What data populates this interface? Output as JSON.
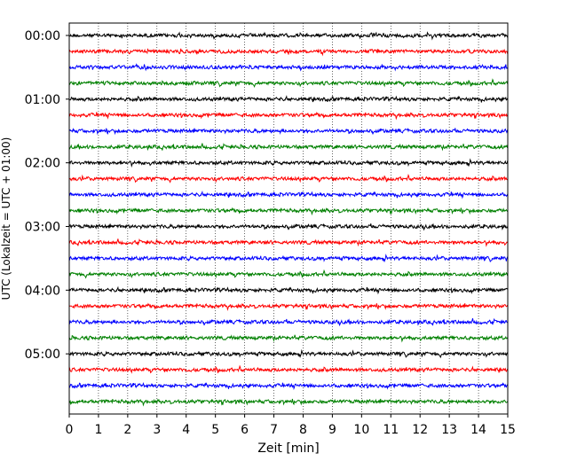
{
  "chart_data": {
    "type": "line",
    "subtype": "seismogram-helicorder",
    "xlabel": "Zeit  [min]",
    "ylabel": "UTC (Lokalzeit = UTC + 01:00)",
    "xlim": [
      0,
      15
    ],
    "x_ticks": [
      0,
      1,
      2,
      3,
      4,
      5,
      6,
      7,
      8,
      9,
      10,
      11,
      12,
      13,
      14,
      15
    ],
    "x_tick_labels": [
      "0",
      "1",
      "2",
      "3",
      "4",
      "5",
      "6",
      "7",
      "8",
      "9",
      "10",
      "11",
      "12",
      "13",
      "14",
      "15"
    ],
    "grid": "vertical-dotted",
    "row_interval_minutes": 15,
    "trace_colors": [
      "#000000",
      "#ff0000",
      "#0000ff",
      "#008000"
    ],
    "traces": [
      {
        "start": "00:00",
        "color": "#000000"
      },
      {
        "start": "00:15",
        "color": "#ff0000"
      },
      {
        "start": "00:30",
        "color": "#0000ff"
      },
      {
        "start": "00:45",
        "color": "#008000"
      },
      {
        "start": "01:00",
        "color": "#000000"
      },
      {
        "start": "01:15",
        "color": "#ff0000"
      },
      {
        "start": "01:30",
        "color": "#0000ff"
      },
      {
        "start": "01:45",
        "color": "#008000"
      },
      {
        "start": "02:00",
        "color": "#000000"
      },
      {
        "start": "02:15",
        "color": "#ff0000"
      },
      {
        "start": "02:30",
        "color": "#0000ff"
      },
      {
        "start": "02:45",
        "color": "#008000"
      },
      {
        "start": "03:00",
        "color": "#000000"
      },
      {
        "start": "03:15",
        "color": "#ff0000"
      },
      {
        "start": "03:30",
        "color": "#0000ff"
      },
      {
        "start": "03:45",
        "color": "#008000"
      },
      {
        "start": "04:00",
        "color": "#000000"
      },
      {
        "start": "04:15",
        "color": "#ff0000"
      },
      {
        "start": "04:30",
        "color": "#0000ff"
      },
      {
        "start": "04:45",
        "color": "#008000"
      },
      {
        "start": "05:00",
        "color": "#000000"
      },
      {
        "start": "05:15",
        "color": "#ff0000"
      },
      {
        "start": "05:30",
        "color": "#0000ff"
      },
      {
        "start": "05:45",
        "color": "#008000"
      }
    ],
    "y_tick_labels": [
      "00:00",
      "01:00",
      "02:00",
      "03:00",
      "04:00",
      "05:00"
    ]
  }
}
